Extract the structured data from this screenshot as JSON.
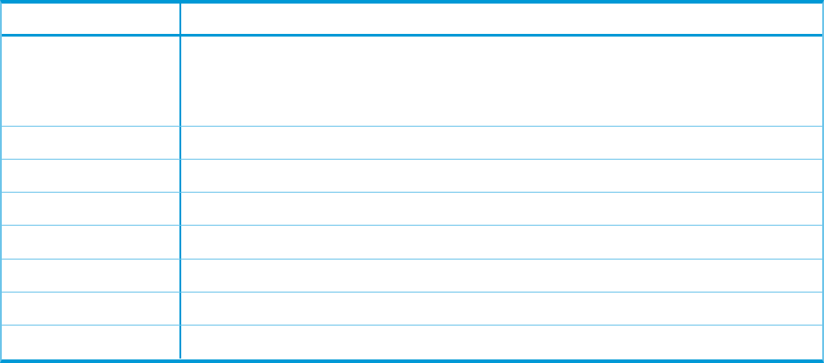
{
  "table": {
    "border_color": "#0099d6",
    "rule_color": "#6cc4ea",
    "columns": 2,
    "header": [
      "",
      ""
    ],
    "rows": [
      [
        "",
        ""
      ],
      [
        "",
        ""
      ],
      [
        "",
        ""
      ],
      [
        "",
        ""
      ],
      [
        "",
        ""
      ],
      [
        "",
        ""
      ],
      [
        "",
        ""
      ],
      [
        "",
        ""
      ]
    ]
  }
}
